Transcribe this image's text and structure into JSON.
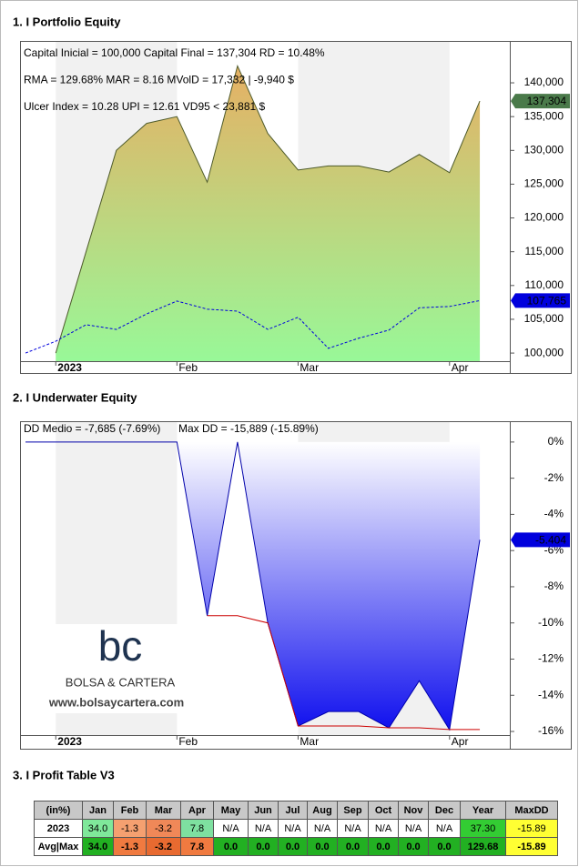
{
  "chart_data": [
    {
      "type": "area",
      "title": "1. I Portfolio Equity",
      "annotations": [
        "Capital Inicial = 100,000  Capital Final = 137,304  RD = 10.48%",
        "RMA = 129.68%  MAR = 8.16  MVolD = 17,332 | -9,940 $",
        "Ulcer Index = 10.28  UPI = 12.61  VD95 < 23,881 $"
      ],
      "categories": [
        null,
        "2023",
        null,
        null,
        null,
        "Feb",
        null,
        null,
        null,
        "Mar",
        null,
        null,
        null,
        null,
        "Apr",
        null
      ],
      "series": [
        {
          "color": "#4d5a2a",
          "fill_gradient": [
            "#e6b064",
            "#98f898"
          ],
          "values": [
            null,
            100000,
            115000,
            130000,
            134000,
            135000,
            125300,
            142500,
            132500,
            127100,
            127700,
            127700,
            126800,
            129400,
            126700,
            137304
          ],
          "value_labels": [
            null,
            null,
            null,
            null,
            null,
            null,
            null,
            null,
            null,
            null,
            null,
            null,
            null,
            null,
            null,
            "137,304"
          ],
          "label_color": "#4a7a4a"
        },
        {
          "color": "#0000dd",
          "dashed": true,
          "values": [
            100000,
            101750,
            104200,
            103500,
            105800,
            107700,
            106500,
            106200,
            103500,
            105300,
            100700,
            102200,
            103400,
            106700,
            106900,
            107765
          ],
          "value_labels": [
            null,
            null,
            null,
            null,
            null,
            null,
            null,
            null,
            null,
            null,
            null,
            null,
            null,
            null,
            null,
            "107,765"
          ],
          "label_color": "#0000dd"
        }
      ],
      "ylim": [
        98800,
        146200
      ],
      "yticks": [
        {
          "value": 100000,
          "label": "100,000"
        },
        {
          "value": 105000,
          "label": "105,000"
        },
        {
          "value": 110000,
          "label": "110,000"
        },
        {
          "value": 115000,
          "label": "115,000"
        },
        {
          "value": 120000,
          "label": "120,000"
        },
        {
          "value": 125000,
          "label": "125,000"
        },
        {
          "value": 130000,
          "label": "130,000"
        },
        {
          "value": 135000,
          "label": "135,000"
        },
        {
          "value": 140000,
          "label": "140,000"
        }
      ]
    },
    {
      "type": "area",
      "title": "2. I Underwater Equity",
      "annotations": [
        "DD Medio = -7,685 (-7.69%)",
        "Max DD = -15,889 (-15.89%)"
      ],
      "watermark": [
        "bc",
        "BOLSA & CARTERA",
        "www.bolsaycartera.com"
      ],
      "categories": [
        null,
        "2023",
        null,
        null,
        null,
        "Feb",
        null,
        null,
        null,
        "Mar",
        null,
        null,
        null,
        null,
        "Apr",
        null
      ],
      "series": [
        {
          "color": "#0000aa",
          "fill_gradient": [
            "#ffffff",
            "#1010ee"
          ],
          "values": [
            0,
            0,
            0,
            0,
            0,
            0,
            -9.6,
            0,
            -10.0,
            -15.7,
            -14.9,
            -14.9,
            -15.8,
            -13.2,
            -15.9,
            -5.404
          ],
          "value_labels": [
            null,
            null,
            null,
            null,
            null,
            null,
            null,
            null,
            null,
            null,
            null,
            null,
            null,
            null,
            null,
            "-5.404"
          ],
          "label_color": "#0000dd"
        },
        {
          "color": "#cc0000",
          "values": [
            null,
            null,
            null,
            null,
            null,
            null,
            -9.6,
            -9.6,
            -10.0,
            -15.7,
            -15.7,
            -15.7,
            -15.8,
            -15.8,
            -15.89,
            -15.89
          ]
        }
      ],
      "ylim": [
        -16.2,
        1.15
      ],
      "yticks": [
        {
          "value": 0,
          "label": "0%"
        },
        {
          "value": -2,
          "label": "-2%"
        },
        {
          "value": -4,
          "label": "-4%"
        },
        {
          "value": -6,
          "label": "-6%"
        },
        {
          "value": -8,
          "label": "-8%"
        },
        {
          "value": -10,
          "label": "-10%"
        },
        {
          "value": -12,
          "label": "-12%"
        },
        {
          "value": -14,
          "label": "-14%"
        },
        {
          "value": -16,
          "label": "-16%"
        }
      ]
    }
  ],
  "profit_table": {
    "title": "3. I Profit Table V3",
    "header": [
      "(in%)",
      "Jan",
      "Feb",
      "Mar",
      "Apr",
      "May",
      "Jun",
      "Jul",
      "Aug",
      "Sep",
      "Oct",
      "Nov",
      "Dec",
      "Year",
      "MaxDD"
    ],
    "rows": [
      [
        "2023",
        "34.0",
        "-1.3",
        "-3.2",
        "7.8",
        "N/A",
        "N/A",
        "N/A",
        "N/A",
        "N/A",
        "N/A",
        "N/A",
        "N/A",
        "37.30",
        "-15.89"
      ],
      [
        "Avg|Max",
        "34.0",
        "-1.3",
        "-3.2",
        "7.8",
        "0.0",
        "0.0",
        "0.0",
        "0.0",
        "0.0",
        "0.0",
        "0.0",
        "0.0",
        "129.68",
        "-15.89"
      ]
    ]
  }
}
